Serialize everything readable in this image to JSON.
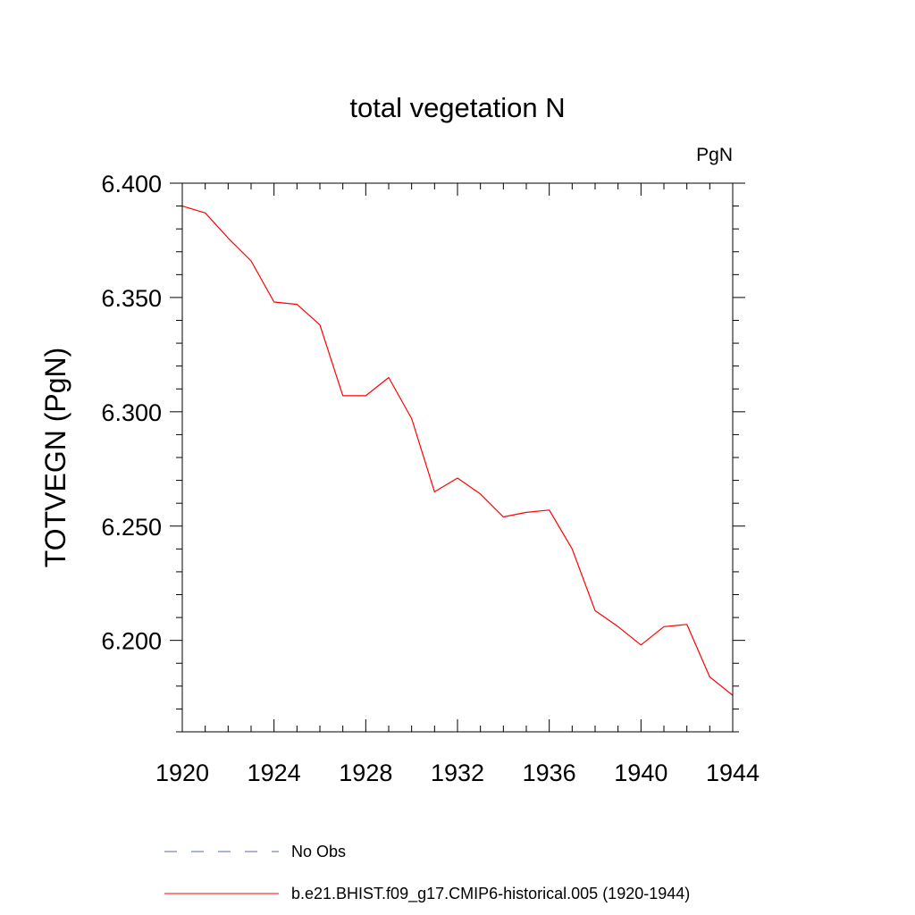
{
  "chart_data": {
    "type": "line",
    "title": "total vegetation N",
    "units_label": "PgN",
    "xlabel": "",
    "ylabel": "TOTVEGN  (PgN)",
    "xlim": [
      1920,
      1944
    ],
    "ylim": [
      6.16,
      6.4
    ],
    "x_ticks": [
      1920,
      1924,
      1928,
      1932,
      1936,
      1940,
      1944
    ],
    "x_tick_labels": [
      "1920",
      "1924",
      "1928",
      "1932",
      "1936",
      "1940",
      "1944"
    ],
    "y_ticks": [
      6.2,
      6.25,
      6.3,
      6.35,
      6.4
    ],
    "y_tick_labels": [
      "6.200",
      "6.250",
      "6.300",
      "6.350",
      "6.400"
    ],
    "y_minor_step": 0.01,
    "x_minor_step": 1,
    "grid": false,
    "legend_position": "bottom",
    "series": [
      {
        "name": "b.e21.BHIST.f09_g17.CMIP6-historical.005 (1920-1944)",
        "color": "#ff0000",
        "style": "solid",
        "x": [
          1920,
          1921,
          1922,
          1923,
          1924,
          1925,
          1926,
          1927,
          1928,
          1929,
          1930,
          1931,
          1932,
          1933,
          1934,
          1935,
          1936,
          1937,
          1938,
          1939,
          1940,
          1941,
          1942,
          1943,
          1944
        ],
        "values": [
          6.39,
          6.387,
          6.376,
          6.366,
          6.348,
          6.347,
          6.338,
          6.307,
          6.307,
          6.315,
          6.297,
          6.265,
          6.271,
          6.264,
          6.254,
          6.256,
          6.257,
          6.24,
          6.213,
          6.206,
          6.198,
          6.206,
          6.207,
          6.184,
          6.176
        ]
      }
    ],
    "legend": [
      {
        "label": "No Obs",
        "color": "#5566bb",
        "style": "dashed"
      },
      {
        "label": "b.e21.BHIST.f09_g17.CMIP6-historical.005 (1920-1944)",
        "color": "#ff0000",
        "style": "solid"
      }
    ]
  }
}
